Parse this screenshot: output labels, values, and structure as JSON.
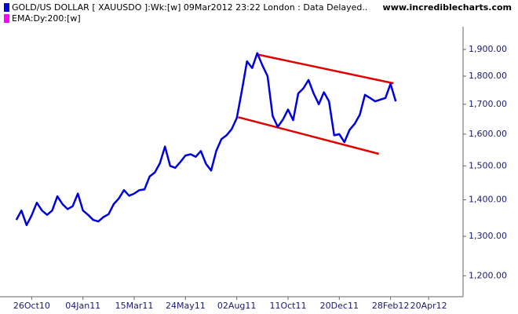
{
  "chart_data": {
    "type": "line",
    "title": "GOLD/US DOLLAR [ XAUUSDO ]:Wk:[w]  09Mar2012 23:22 London : Data Delayed..",
    "watermark": "www.incrediblecharts.com",
    "indicators": [
      {
        "name": "EMA:Dy:200:[w]",
        "color": "#ff00ff"
      }
    ],
    "log_scale": true,
    "grid": false,
    "x": [
      "2010-10-05",
      "2010-10-12",
      "2010-10-19",
      "2010-10-26",
      "2010-11-02",
      "2010-11-09",
      "2010-11-16",
      "2010-11-23",
      "2010-11-30",
      "2010-12-07",
      "2010-12-14",
      "2010-12-21",
      "2010-12-28",
      "2011-01-04",
      "2011-01-11",
      "2011-01-18",
      "2011-01-25",
      "2011-02-01",
      "2011-02-08",
      "2011-02-15",
      "2011-02-22",
      "2011-03-01",
      "2011-03-08",
      "2011-03-15",
      "2011-03-22",
      "2011-03-29",
      "2011-04-05",
      "2011-04-12",
      "2011-04-19",
      "2011-04-26",
      "2011-05-03",
      "2011-05-10",
      "2011-05-17",
      "2011-05-24",
      "2011-05-31",
      "2011-06-07",
      "2011-06-14",
      "2011-06-21",
      "2011-06-28",
      "2011-07-05",
      "2011-07-12",
      "2011-07-19",
      "2011-07-26",
      "2011-08-02",
      "2011-08-09",
      "2011-08-16",
      "2011-08-23",
      "2011-08-30",
      "2011-09-06",
      "2011-09-13",
      "2011-09-20",
      "2011-09-27",
      "2011-10-04",
      "2011-10-11",
      "2011-10-18",
      "2011-10-25",
      "2011-11-01",
      "2011-11-08",
      "2011-11-15",
      "2011-11-22",
      "2011-11-29",
      "2011-12-06",
      "2011-12-13",
      "2011-12-20",
      "2011-12-27",
      "2012-01-03",
      "2012-01-10",
      "2012-01-17",
      "2012-01-24",
      "2012-01-31",
      "2012-02-07",
      "2012-02-14",
      "2012-02-21",
      "2012-02-28",
      "2012-03-06"
    ],
    "series": [
      {
        "name": "GOLD/US DOLLAR",
        "color": "#0000dd",
        "values": [
          1344,
          1370,
          1330,
          1357,
          1392,
          1370,
          1358,
          1370,
          1410,
          1388,
          1374,
          1382,
          1418,
          1370,
          1358,
          1344,
          1340,
          1352,
          1360,
          1388,
          1404,
          1428,
          1412,
          1418,
          1428,
          1430,
          1468,
          1480,
          1508,
          1560,
          1500,
          1494,
          1512,
          1532,
          1536,
          1528,
          1546,
          1506,
          1486,
          1546,
          1584,
          1596,
          1616,
          1653,
          1748,
          1855,
          1830,
          1886,
          1840,
          1800,
          1660,
          1624,
          1648,
          1682,
          1646,
          1738,
          1756,
          1786,
          1738,
          1700,
          1742,
          1710,
          1596,
          1600,
          1574,
          1614,
          1634,
          1664,
          1733,
          1722,
          1710,
          1716,
          1722,
          1772,
          1710
        ]
      }
    ],
    "trendlines": [
      {
        "color": "#e00000",
        "x": [
          "2011-08-30",
          "2012-03-03"
        ],
        "values": [
          1881,
          1774
        ]
      },
      {
        "color": "#e00000",
        "x": [
          "2011-08-04",
          "2012-02-12"
        ],
        "values": [
          1656,
          1537
        ]
      }
    ],
    "xlim": [
      "2010-10-02",
      "2012-06-06"
    ],
    "xticks": [
      {
        "value": "2010-10-26",
        "label": "26Oct10"
      },
      {
        "value": "2011-01-04",
        "label": "04Jan11"
      },
      {
        "value": "2011-03-15",
        "label": "15Mar11"
      },
      {
        "value": "2011-05-24",
        "label": "24May11"
      },
      {
        "value": "2011-08-02",
        "label": "02Aug11"
      },
      {
        "value": "2011-10-11",
        "label": "11Oct11"
      },
      {
        "value": "2011-12-20",
        "label": "20Dec11"
      },
      {
        "value": "2012-02-28",
        "label": "28Feb12"
      },
      {
        "value": "2012-04-20",
        "label": "20Apr12"
      }
    ],
    "ylim": [
      1150,
      2035
    ],
    "yticks": [
      {
        "value": 1200,
        "label": "1,200.00"
      },
      {
        "value": 1300,
        "label": "1,300.00"
      },
      {
        "value": 1400,
        "label": "1,400.00"
      },
      {
        "value": 1500,
        "label": "1,500.00"
      },
      {
        "value": 1600,
        "label": "1,600.00"
      },
      {
        "value": 1700,
        "label": "1,700.00"
      },
      {
        "value": 1800,
        "label": "1,800.00"
      },
      {
        "value": 1900,
        "label": "1,900.00"
      }
    ]
  }
}
